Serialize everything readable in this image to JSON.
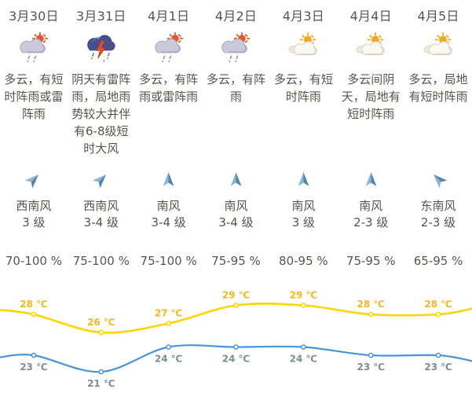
{
  "days": [
    {
      "date": "3月30日",
      "icon": "sun-shower",
      "desc": "多云，有短时阵雨或雷阵雨",
      "wind_dir": "西南风",
      "wind_level": "3 级",
      "wind_deg": 45,
      "humidity": "70-100 %"
    },
    {
      "date": "3月31日",
      "icon": "thunderstorm",
      "desc": "阴天有雷阵雨，局地雨势较大并伴有6-8级短时大风",
      "wind_dir": "西南风",
      "wind_level": "3-4 级",
      "wind_deg": 45,
      "humidity": "75-100 %"
    },
    {
      "date": "4月1日",
      "icon": "sun-shower",
      "desc": "多云，有阵雨或雷阵雨",
      "wind_dir": "南风",
      "wind_level": "3-4 级",
      "wind_deg": 0,
      "humidity": "75-100 %"
    },
    {
      "date": "4月2日",
      "icon": "sun-shower",
      "desc": "多云，有阵雨",
      "wind_dir": "南风",
      "wind_level": "3-4 级",
      "wind_deg": 0,
      "humidity": "75-95 %"
    },
    {
      "date": "4月3日",
      "icon": "partly-cloudy",
      "desc": "多云，有短时阵雨",
      "wind_dir": "南风",
      "wind_level": "3 级",
      "wind_deg": 0,
      "humidity": "80-95 %"
    },
    {
      "date": "4月4日",
      "icon": "partly-cloudy",
      "desc": "多云间阴天，局地有短时阵雨",
      "wind_dir": "南风",
      "wind_level": "2-3 级",
      "wind_deg": 0,
      "humidity": "75-95 %"
    },
    {
      "date": "4月5日",
      "icon": "partly-cloudy",
      "desc": "多云，局地有短时阵雨",
      "wind_dir": "东南风",
      "wind_level": "2-3 级",
      "wind_deg": -45,
      "humidity": "65-95 %"
    }
  ],
  "chart_data": {
    "type": "line",
    "categories": [
      "3月30日",
      "3月31日",
      "4月1日",
      "4月2日",
      "4月3日",
      "4月4日",
      "4月5日"
    ],
    "series": [
      {
        "name": "high-temperature",
        "values": [
          28,
          26,
          27,
          29,
          29,
          28,
          28
        ],
        "color": "#ffd400",
        "label_color": "#f6b61e"
      },
      {
        "name": "low-temperature",
        "values": [
          23,
          21,
          24,
          24,
          24,
          23,
          23
        ],
        "color": "#4a94d8",
        "label_color": "#7d8c96"
      }
    ],
    "unit": "℃",
    "legend": "none",
    "grid": "off"
  },
  "colors": {
    "text": "#56554b",
    "wind_arrow_light": "#8db6d2",
    "wind_arrow_dark": "#5384ab",
    "background": "#ffffff"
  }
}
